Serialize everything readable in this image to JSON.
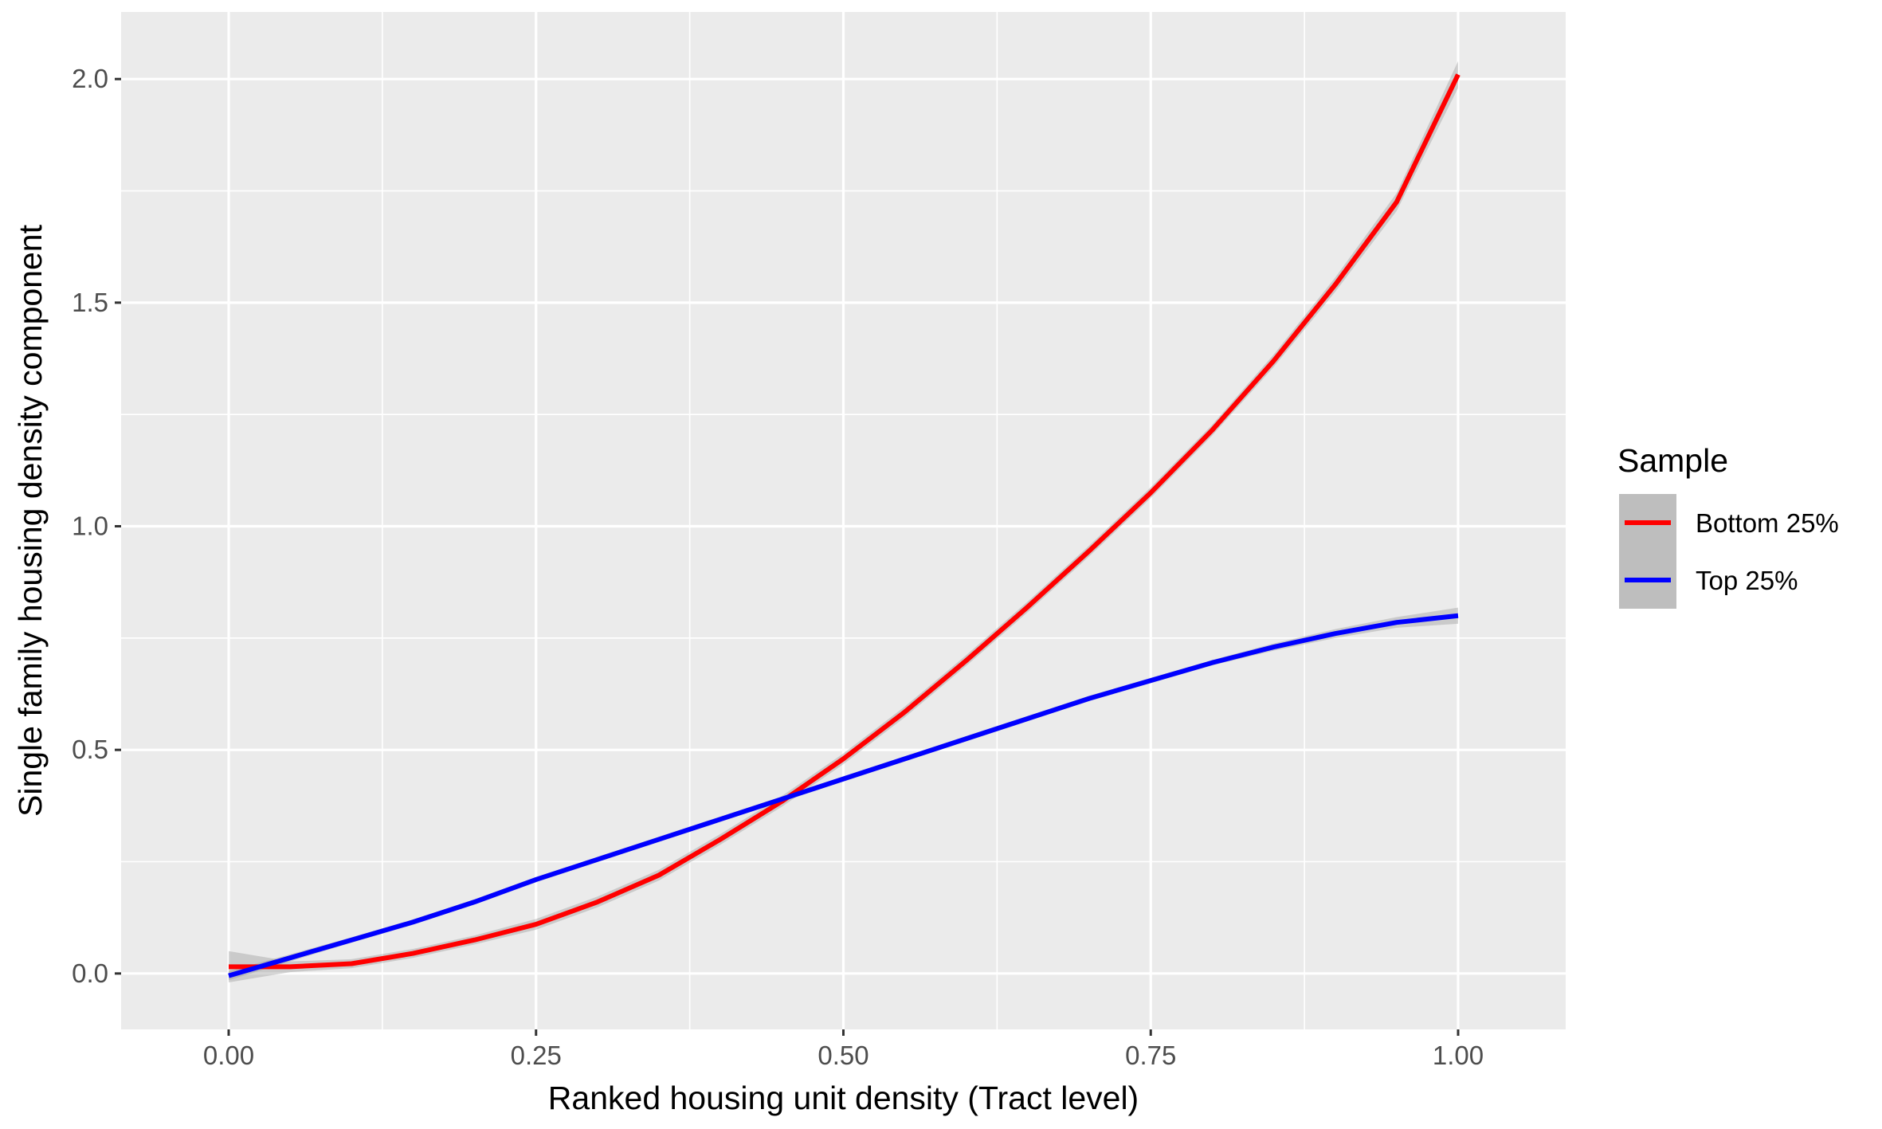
{
  "chart_data": {
    "type": "line",
    "xlabel": "Ranked housing unit density (Tract level)",
    "ylabel": "Single family housing density component",
    "xlim": [
      -0.0875,
      1.0875
    ],
    "ylim": [
      -0.125,
      2.15
    ],
    "x_ticks": [
      0.0,
      0.25,
      0.5,
      0.75,
      1.0
    ],
    "x_tick_labels": [
      "0.00",
      "0.25",
      "0.50",
      "0.75",
      "1.00"
    ],
    "y_ticks": [
      0.0,
      0.5,
      1.0,
      1.5,
      2.0
    ],
    "y_tick_labels": [
      "0.0",
      "0.5",
      "1.0",
      "1.5",
      "2.0"
    ],
    "grid": true,
    "legend": {
      "title": "Sample",
      "position": "right",
      "entries": [
        {
          "label": "Bottom 25%",
          "color": "#ff0000"
        },
        {
          "label": "Top 25%",
          "color": "#0000ff"
        }
      ]
    },
    "colors": {
      "panel": "#ebebeb",
      "grid_major": "#ffffff",
      "ribbon": "#999999",
      "legend_key_bg": "#bebebe"
    },
    "x": [
      0.0,
      0.05,
      0.1,
      0.15,
      0.2,
      0.25,
      0.3,
      0.35,
      0.4,
      0.45,
      0.5,
      0.55,
      0.6,
      0.65,
      0.7,
      0.75,
      0.8,
      0.85,
      0.9,
      0.95,
      1.0
    ],
    "series": [
      {
        "name": "Bottom 25%",
        "color": "#ff0000",
        "values": [
          0.015,
          0.015,
          0.022,
          0.045,
          0.075,
          0.11,
          0.16,
          0.22,
          0.3,
          0.385,
          0.48,
          0.585,
          0.7,
          0.82,
          0.945,
          1.075,
          1.215,
          1.37,
          1.54,
          1.725,
          2.01
        ],
        "ci_halfwidth": [
          0.035,
          0.012,
          0.01,
          0.01,
          0.01,
          0.012,
          0.012,
          0.012,
          0.012,
          0.012,
          0.012,
          0.012,
          0.012,
          0.012,
          0.012,
          0.012,
          0.012,
          0.014,
          0.016,
          0.02,
          0.03
        ]
      },
      {
        "name": "Top 25%",
        "color": "#0000ff",
        "values": [
          -0.005,
          0.035,
          0.075,
          0.115,
          0.16,
          0.21,
          0.255,
          0.3,
          0.345,
          0.39,
          0.435,
          0.48,
          0.525,
          0.57,
          0.615,
          0.655,
          0.695,
          0.73,
          0.76,
          0.785,
          0.8
        ],
        "ci_halfwidth": [
          0.01,
          0.008,
          0.006,
          0.006,
          0.006,
          0.006,
          0.006,
          0.006,
          0.006,
          0.006,
          0.006,
          0.006,
          0.006,
          0.006,
          0.006,
          0.006,
          0.006,
          0.008,
          0.01,
          0.012,
          0.018
        ]
      }
    ]
  }
}
